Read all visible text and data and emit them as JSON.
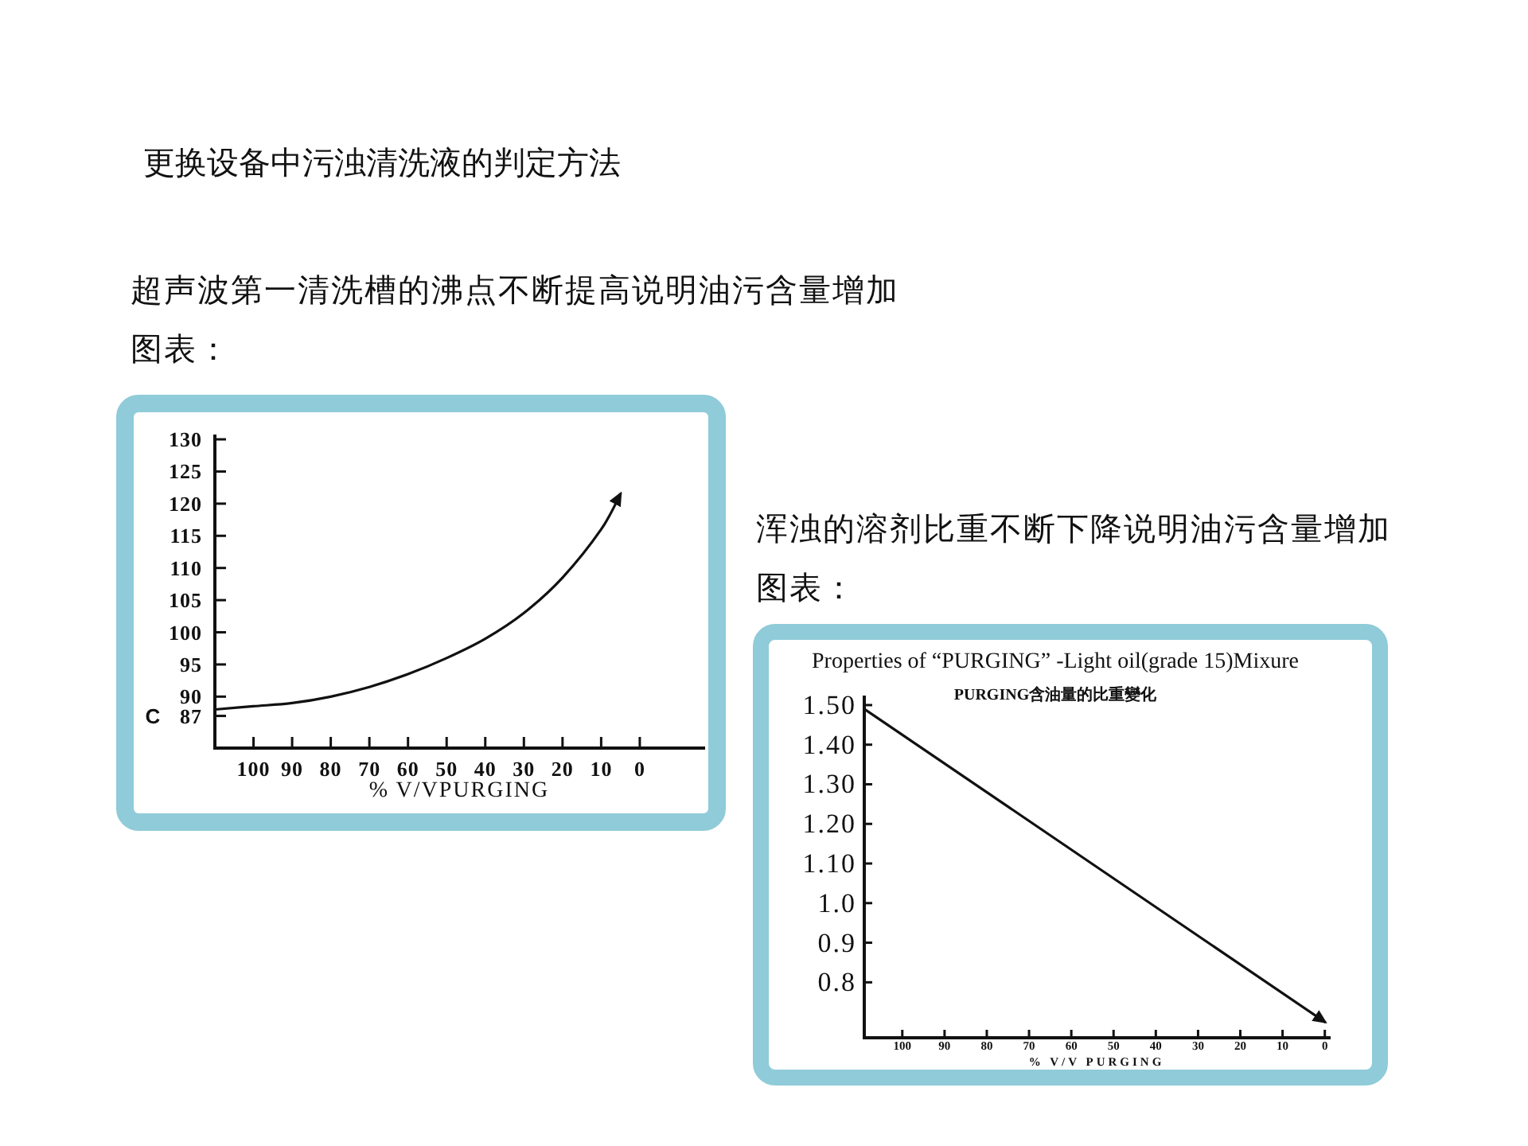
{
  "chart_data": [
    {
      "type": "line",
      "title": "超声波第一清洗槽的沸点不断提高说明油污含量增加图表：",
      "annotations": [
        "更换设备中污浊清洗液的判定方法"
      ],
      "xlabel": "% V/VPURGING",
      "ylabel": "C",
      "x": [
        110,
        100,
        90,
        80,
        70,
        60,
        50,
        40,
        30,
        20,
        10,
        5
      ],
      "series": [
        {
          "color": "#111111",
          "values": [
            88,
            88.5,
            89,
            90,
            91.5,
            93.5,
            96,
            99,
            103,
            108.5,
            116,
            121.5
          ]
        }
      ],
      "xlim": [
        110,
        -16.5
      ],
      "xticks": [
        100,
        90,
        80,
        70,
        60,
        50,
        40,
        30,
        20,
        10,
        0
      ],
      "ylim": [
        82,
        130.5
      ],
      "yticks": [
        87,
        90,
        95,
        100,
        105,
        110,
        115,
        120,
        125,
        130
      ]
    },
    {
      "type": "line",
      "title": "Properties of “PURGING” -Light oil(grade 15)Mixure",
      "subtitle": "PURGING含油量的比重變化",
      "annotations": [
        "浑浊的溶剂比重不断下降说明油污含量增加图表："
      ],
      "xlabel": "% V/V PURGING",
      "x": [
        109,
        0
      ],
      "series": [
        {
          "color": "#111111",
          "values": [
            1.49,
            0.7
          ]
        }
      ],
      "xlim": [
        109,
        -1
      ],
      "xticks": [
        100,
        90,
        80,
        70,
        60,
        50,
        40,
        30,
        20,
        10,
        0
      ],
      "ylim": [
        0.66,
        1.52
      ],
      "yticks": [
        {
          "value": 1.5,
          "label": "1.50"
        },
        {
          "value": 1.4,
          "label": "1.40"
        },
        {
          "value": 1.3,
          "label": "1.30"
        },
        {
          "value": 1.2,
          "label": "1.20"
        },
        {
          "value": 1.1,
          "label": "1.10"
        },
        {
          "value": 1,
          "label": "1.0"
        },
        0.9,
        0.8
      ]
    }
  ]
}
